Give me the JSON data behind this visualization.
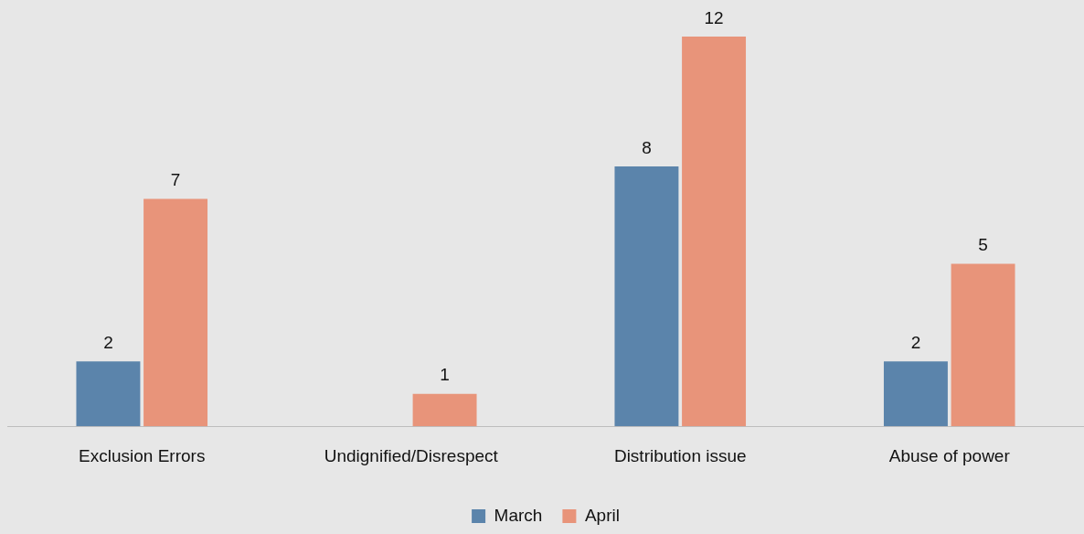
{
  "chart_data": {
    "type": "bar",
    "categories": [
      "Exclusion Errors",
      "Undignified/Disrespect",
      "Distribution issue",
      "Abuse of power"
    ],
    "series": [
      {
        "name": "March",
        "color": "#5b84ab",
        "values": [
          2,
          null,
          8,
          2
        ]
      },
      {
        "name": "April",
        "color": "#e8947a",
        "values": [
          7,
          1,
          12,
          5
        ]
      }
    ],
    "ylim": [
      0,
      12
    ],
    "tick_labels": "x",
    "grid": false,
    "legend": "bottom",
    "data_labels": true
  }
}
